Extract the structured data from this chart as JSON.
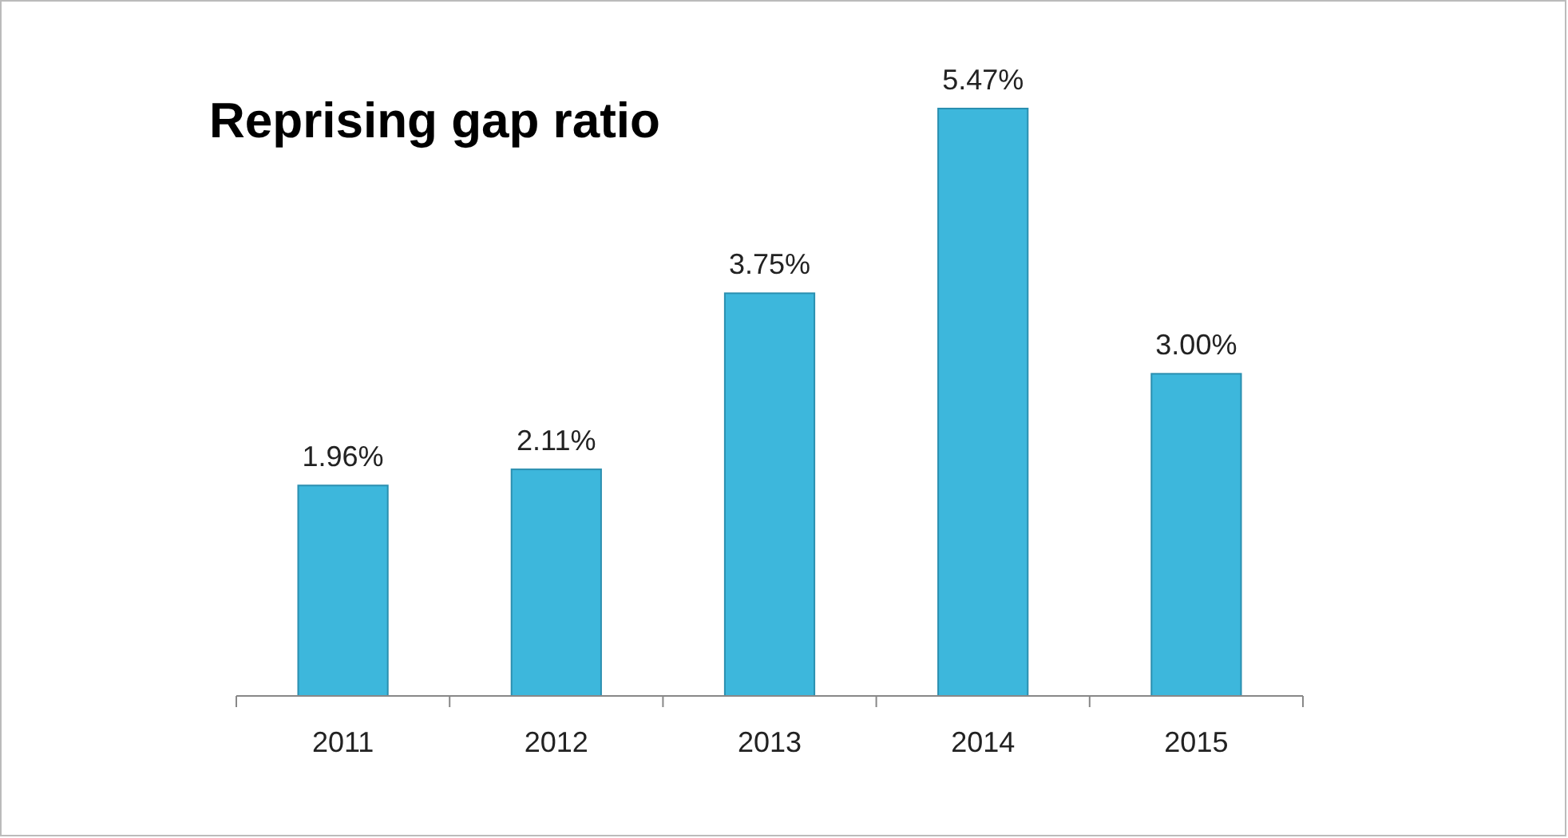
{
  "chart_data": {
    "type": "bar",
    "title": "Reprising gap ratio",
    "categories": [
      "2011",
      "2012",
      "2013",
      "2014",
      "2015"
    ],
    "values": [
      1.96,
      2.11,
      3.75,
      5.47,
      3.0
    ],
    "value_labels": [
      "1.96%",
      "2.11%",
      "3.75%",
      "5.47%",
      "3.00%"
    ],
    "color": "#3db7dc"
  }
}
